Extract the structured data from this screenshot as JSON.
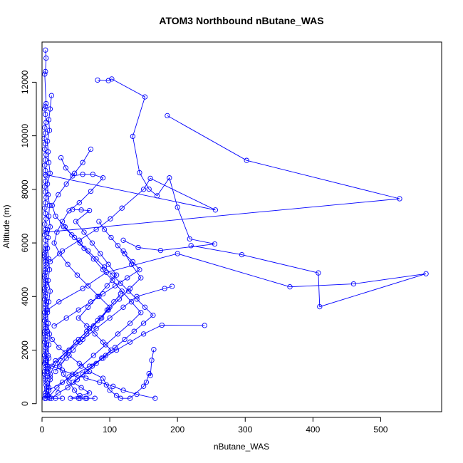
{
  "chart_data": {
    "type": "line",
    "title": "ATOM3 Northbound nButane_WAS",
    "xlabel": "nButane_WAS",
    "ylabel": "Altitude (m)",
    "xlim": [
      0,
      590
    ],
    "ylim": [
      -300,
      13500
    ],
    "xticks": [
      0,
      100,
      200,
      300,
      400,
      500
    ],
    "yticks": [
      0,
      2000,
      4000,
      6000,
      8000,
      10000,
      12000
    ],
    "color": "#0000ff",
    "marker": "open-circle",
    "grid": false,
    "series": [
      {
        "x": [
          5,
          6,
          5,
          4,
          6,
          5,
          4,
          5,
          6,
          4,
          5,
          3,
          5,
          4,
          6,
          5,
          4,
          5,
          6,
          5,
          4,
          5,
          6,
          5,
          4,
          5,
          6,
          4,
          5,
          4,
          5,
          6,
          5,
          4,
          5,
          6,
          5,
          4,
          5,
          4,
          5,
          4,
          5,
          6,
          5,
          4,
          5,
          4,
          5,
          4,
          5,
          6,
          5,
          4
        ],
        "y": [
          13200,
          12900,
          12400,
          12300,
          11200,
          11100,
          11000,
          10800,
          10500,
          10300,
          10100,
          9900,
          9700,
          9500,
          9300,
          9100,
          8900,
          8700,
          8500,
          8300,
          8100,
          7900,
          7700,
          7500,
          7300,
          7100,
          6900,
          6700,
          6500,
          6300,
          6100,
          5900,
          5700,
          5500,
          5300,
          5100,
          4900,
          4700,
          4500,
          4300,
          4100,
          3900,
          3700,
          3500,
          3300,
          3100,
          2900,
          2700,
          2500,
          2300,
          2100,
          1900,
          1700,
          1500
        ]
      },
      {
        "x": [
          6,
          4,
          5,
          6,
          7,
          5,
          4,
          6,
          5,
          7,
          6,
          5,
          4,
          6,
          5,
          4,
          5,
          6,
          5,
          4,
          5,
          6,
          5,
          4,
          5,
          6,
          5,
          4,
          6,
          5,
          4,
          5,
          6,
          5,
          4,
          5
        ],
        "y": [
          1300,
          1100,
          900,
          700,
          500,
          300,
          200,
          200,
          400,
          600,
          800,
          1000,
          1200,
          1400,
          1600,
          1800,
          2000,
          2200,
          2400,
          2600,
          2800,
          3000,
          3200,
          3400,
          3600,
          3800,
          4000,
          4200,
          4400,
          4600,
          4800,
          5000,
          5200,
          5400,
          5600,
          5800
        ]
      },
      {
        "x": [
          14,
          12,
          10,
          11,
          8,
          9,
          10,
          12,
          8,
          9,
          11,
          10,
          12,
          9,
          8,
          10,
          11,
          9,
          12,
          10,
          8,
          9,
          11,
          10,
          9,
          8,
          12,
          10,
          9,
          11,
          10,
          12,
          9,
          10
        ],
        "y": [
          11500,
          11000,
          10600,
          10200,
          9800,
          9400,
          9000,
          8600,
          8200,
          7800,
          7400,
          7000,
          6600,
          6200,
          5800,
          5400,
          5000,
          4600,
          4200,
          3800,
          3400,
          3000,
          2600,
          2200,
          1800,
          1400,
          1000,
          600,
          300,
          200,
          500,
          900,
          1300,
          1700
        ]
      },
      {
        "x": [
          82,
          98,
          103,
          152,
          134,
          144,
          158,
          170,
          188,
          200,
          218,
          255,
          175,
          142,
          120
        ],
        "y": [
          12080,
          12060,
          12120,
          11450,
          9980,
          8620,
          8010,
          7760,
          8430,
          7330,
          6150,
          5960,
          5720,
          5830,
          6100
        ]
      },
      {
        "x": [
          185,
          302,
          528,
          6,
          8
        ],
        "y": [
          10750,
          9080,
          7650,
          6400,
          6500
        ]
      },
      {
        "x": [
          5,
          256,
          160,
          150,
          118,
          101,
          80,
          55,
          30,
          12
        ],
        "y": [
          8550,
          7230,
          8410,
          8000,
          7300,
          6900,
          6500,
          6100,
          5700,
          5300
        ]
      },
      {
        "x": [
          220,
          295,
          408,
          410,
          567,
          460,
          366,
          200,
          95,
          60,
          25,
          8
        ],
        "y": [
          5900,
          5560,
          4880,
          3620,
          4850,
          4470,
          4360,
          5600,
          4900,
          4300,
          3800,
          3500
        ]
      },
      {
        "x": [
          192,
          181,
          140,
          120,
          100,
          80,
          60,
          40,
          20,
          8
        ],
        "y": [
          4380,
          4300,
          4000,
          3600,
          3200,
          2800,
          2400,
          2000,
          1600,
          1200
        ]
      },
      {
        "x": [
          240,
          177,
          150,
          130,
          110,
          90,
          70,
          50,
          30,
          10
        ],
        "y": [
          2920,
          2930,
          2600,
          2300,
          2000,
          1700,
          1400,
          1100,
          800,
          500
        ]
      },
      {
        "x": [
          165,
          162,
          160,
          158,
          154,
          150,
          130,
          116,
          110,
          100,
          95,
          90,
          70,
          55,
          40,
          25,
          15,
          8
        ],
        "y": [
          2020,
          1620,
          1050,
          1120,
          800,
          650,
          200,
          200,
          300,
          500,
          700,
          950,
          1200,
          1500,
          1800,
          2100,
          2400,
          2700
        ]
      },
      {
        "x": [
          167,
          140,
          120,
          105,
          85,
          65,
          45,
          30,
          15,
          5
        ],
        "y": [
          200,
          350,
          500,
          650,
          800,
          950,
          1100,
          1250,
          1400,
          1550
        ]
      },
      {
        "x": [
          28,
          35,
          45,
          60,
          75,
          90,
          72,
          55,
          40,
          30,
          22,
          18,
          26,
          38,
          52,
          68,
          84,
          100,
          88,
          70,
          54,
          40,
          28,
          20
        ],
        "y": [
          9180,
          8800,
          8500,
          8560,
          8560,
          8430,
          7930,
          7500,
          7200,
          6800,
          6400,
          6000,
          5600,
          5200,
          4800,
          4400,
          4000,
          3600,
          3200,
          2800,
          2400,
          2000,
          1600,
          1200
        ]
      },
      {
        "x": [
          72,
          60,
          48,
          36,
          24,
          15,
          20,
          34,
          48,
          62,
          76,
          90,
          104,
          118,
          132,
          146,
          130,
          112,
          94,
          76,
          58,
          40,
          22,
          10
        ],
        "y": [
          9500,
          9000,
          8600,
          8200,
          7800,
          7400,
          7000,
          6600,
          6200,
          5800,
          5400,
          5000,
          4600,
          4200,
          3800,
          3400,
          3000,
          2600,
          2200,
          1800,
          1400,
          1000,
          600,
          250
        ]
      },
      {
        "x": [
          45,
          58,
          70,
          50,
          62,
          74,
          86,
          98,
          110,
          96,
          82,
          68,
          54,
          66,
          78,
          90,
          102,
          88,
          74,
          60,
          46,
          58,
          70,
          56,
          42,
          54,
          66,
          78,
          64
        ],
        "y": [
          7250,
          7230,
          7210,
          6800,
          6400,
          6000,
          5600,
          5200,
          4800,
          4400,
          4000,
          3600,
          3200,
          2900,
          2600,
          2300,
          2000,
          1700,
          1400,
          1100,
          800,
          600,
          400,
          300,
          200,
          200,
          200,
          200,
          200
        ]
      },
      {
        "x": [
          32,
          44,
          56,
          68,
          80,
          92,
          104,
          116,
          128,
          140,
          152,
          164,
          150,
          136,
          122,
          108,
          94,
          80,
          66,
          52,
          38,
          24,
          14,
          20,
          30
        ],
        "y": [
          6600,
          6300,
          6000,
          5700,
          5400,
          5100,
          4800,
          4500,
          4200,
          3900,
          3600,
          3300,
          3000,
          2700,
          2400,
          2100,
          1800,
          1500,
          1200,
          900,
          600,
          400,
          200,
          200,
          200
        ]
      },
      {
        "x": [
          120,
          132,
          146,
          130,
          114,
          98,
          82,
          66,
          50,
          34,
          20,
          12
        ],
        "y": [
          5700,
          5200,
          4700,
          4300,
          3900,
          3500,
          3100,
          2700,
          2300,
          1900,
          1500,
          1100
        ]
      },
      {
        "x": [
          84,
          92,
          102,
          112,
          122,
          134,
          144,
          126,
          108,
          90,
          72,
          54,
          36,
          18
        ],
        "y": [
          6800,
          6500,
          6200,
          5900,
          5600,
          5300,
          5000,
          4700,
          4400,
          4100,
          3800,
          3500,
          3200,
          2900
        ]
      },
      {
        "x": [
          56,
          48,
          40,
          32,
          26,
          36,
          46,
          56,
          66,
          76,
          86,
          96,
          106,
          116
        ],
        "y": [
          200,
          500,
          800,
          1100,
          1400,
          1700,
          2000,
          2300,
          2600,
          2900,
          3200,
          3500,
          3800,
          4100
        ]
      }
    ]
  }
}
